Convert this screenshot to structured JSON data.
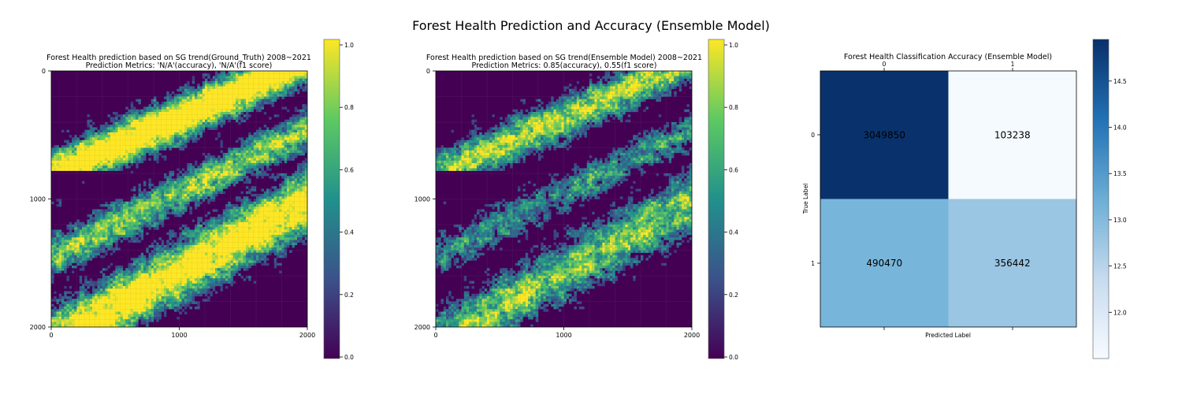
{
  "figure": {
    "suptitle": "Forest Health Prediction and Accuracy (Ensemble Model)"
  },
  "chart_data": [
    {
      "type": "heatmap",
      "title": "Forest Health prediction based on SG trend(Ground_Truth) 2008~2021",
      "subtitle": "Prediction Metrics: 'N/A'(accuracy), 'N/A'(f1 score)",
      "colormap": "viridis",
      "xlim": [
        0,
        2000
      ],
      "ylim": [
        2000,
        0
      ],
      "x_ticks": [
        "0",
        "1000",
        "2000"
      ],
      "y_ticks": [
        "0",
        "1000",
        "2000"
      ],
      "colorbar_range": [
        0,
        1
      ],
      "colorbar_ticks": [
        "0.0",
        "0.2",
        "0.4",
        "0.6",
        "0.8",
        "1.0"
      ],
      "grid": true
    },
    {
      "type": "heatmap",
      "title": "Forest Health prediction based on SG trend(Ensemble Model) 2008~2021",
      "subtitle": "Prediction Metrics: 0.85(accuracy), 0.55(f1 score)",
      "colormap": "viridis",
      "xlim": [
        0,
        2000
      ],
      "ylim": [
        2000,
        0
      ],
      "x_ticks": [
        "0",
        "1000",
        "2000"
      ],
      "y_ticks": [
        "0",
        "1000",
        "2000"
      ],
      "colorbar_range": [
        0,
        1
      ],
      "colorbar_ticks": [
        "0.0",
        "0.2",
        "0.4",
        "0.6",
        "0.8",
        "1.0"
      ],
      "grid": true
    },
    {
      "type": "heatmap",
      "title": "Forest Health Classification Accuracy (Ensemble Model)",
      "xlabel": "Predicted Label",
      "ylabel": "True Label",
      "x_categories": [
        "0",
        "1"
      ],
      "y_categories": [
        "0",
        "1"
      ],
      "matrix": [
        [
          "3049850",
          "103238"
        ],
        [
          "490470",
          "356442"
        ]
      ],
      "color_values": [
        [
          14.93,
          11.54
        ],
        [
          13.1,
          12.78
        ]
      ],
      "colormap": "Blues",
      "colorbar_range": [
        11.5,
        14.95
      ],
      "colorbar_ticks": [
        "12.0",
        "12.5",
        "13.0",
        "13.5",
        "14.0",
        "14.5"
      ]
    }
  ]
}
